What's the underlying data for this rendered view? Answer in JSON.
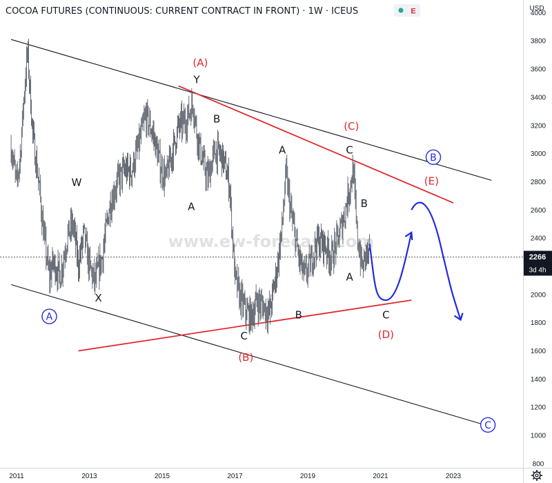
{
  "header": {
    "title": "COCOA FUTURES (CONTINUOUS: CURRENT CONTRACT IN FRONT) · 1W · ICEUS",
    "badge_letter": "E",
    "currency": "USD"
  },
  "price_tag": {
    "value": "2266",
    "countdown": "3d 4h"
  },
  "watermark": "www.ew-forecast.com",
  "chart_data": {
    "type": "line",
    "symbol": "Cocoa Futures",
    "interval": "1W",
    "xlim": [
      2010.85,
      2024.25
    ],
    "ylim": [
      770,
      4090
    ],
    "x_ticks": [
      2011,
      2013,
      2015,
      2017,
      2019,
      2021,
      2023
    ],
    "y_ticks": [
      800,
      1000,
      1200,
      1400,
      1600,
      1800,
      2000,
      2200,
      2400,
      2600,
      2800,
      3000,
      3200,
      3400,
      3600,
      3800,
      4000
    ],
    "last_price": 2266,
    "price_path": [
      [
        2010.85,
        3050
      ],
      [
        2011.0,
        2780
      ],
      [
        2011.1,
        2990
      ],
      [
        2011.2,
        3400
      ],
      [
        2011.3,
        3730
      ],
      [
        2011.45,
        3120
      ],
      [
        2011.6,
        2820
      ],
      [
        2011.75,
        2420
      ],
      [
        2011.9,
        2120
      ],
      [
        2012.0,
        2230
      ],
      [
        2012.2,
        2130
      ],
      [
        2012.4,
        2420
      ],
      [
        2012.55,
        2500
      ],
      [
        2012.7,
        2210
      ],
      [
        2012.85,
        2430
      ],
      [
        2013.0,
        2200
      ],
      [
        2013.15,
        2090
      ],
      [
        2013.35,
        2260
      ],
      [
        2013.55,
        2620
      ],
      [
        2013.75,
        2790
      ],
      [
        2013.95,
        2880
      ],
      [
        2014.15,
        2870
      ],
      [
        2014.35,
        3050
      ],
      [
        2014.55,
        3270
      ],
      [
        2014.75,
        3140
      ],
      [
        2014.95,
        2910
      ],
      [
        2015.1,
        2820
      ],
      [
        2015.25,
        2980
      ],
      [
        2015.45,
        3190
      ],
      [
        2015.65,
        3230
      ],
      [
        2015.85,
        3360
      ],
      [
        2015.95,
        3150
      ],
      [
        2016.1,
        2960
      ],
      [
        2016.25,
        2820
      ],
      [
        2016.45,
        3020
      ],
      [
        2016.65,
        2980
      ],
      [
        2016.85,
        2780
      ],
      [
        2017.0,
        2120
      ],
      [
        2017.15,
        1970
      ],
      [
        2017.3,
        1880
      ],
      [
        2017.45,
        1840
      ],
      [
        2017.6,
        1950
      ],
      [
        2017.75,
        1920
      ],
      [
        2017.95,
        1870
      ],
      [
        2018.15,
        2170
      ],
      [
        2018.3,
        2490
      ],
      [
        2018.4,
        2860
      ],
      [
        2018.55,
        2560
      ],
      [
        2018.75,
        2270
      ],
      [
        2018.9,
        2130
      ],
      [
        2019.05,
        2200
      ],
      [
        2019.25,
        2380
      ],
      [
        2019.45,
        2360
      ],
      [
        2019.65,
        2260
      ],
      [
        2019.85,
        2410
      ],
      [
        2020.0,
        2560
      ],
      [
        2020.15,
        2760
      ],
      [
        2020.25,
        2890
      ],
      [
        2020.35,
        2430
      ],
      [
        2020.5,
        2180
      ],
      [
        2020.6,
        2300
      ],
      [
        2020.7,
        2266
      ]
    ],
    "trendlines": [
      {
        "color": "#131722",
        "points": [
          [
            2010.85,
            3810
          ],
          [
            2024.05,
            2810
          ]
        ]
      },
      {
        "color": "#131722",
        "points": [
          [
            2010.85,
            2070
          ],
          [
            2024.05,
            1060
          ]
        ]
      },
      {
        "color": "#e0282e",
        "points": [
          [
            2015.45,
            3480
          ],
          [
            2023.0,
            2650
          ]
        ]
      },
      {
        "color": "#e0282e",
        "points": [
          [
            2012.7,
            1600
          ],
          [
            2021.85,
            1960
          ]
        ]
      }
    ],
    "projection": [
      [
        2020.7,
        2360
      ],
      [
        2020.85,
        2060
      ],
      [
        2021.15,
        1960
      ],
      [
        2021.45,
        2040
      ],
      [
        2021.65,
        2200
      ],
      [
        2021.85,
        2440
      ],
      [
        2021.85,
        2600
      ],
      [
        2022.05,
        2700
      ],
      [
        2022.35,
        2680
      ],
      [
        2022.65,
        2350
      ],
      [
        2022.95,
        2020
      ],
      [
        2023.2,
        1820
      ]
    ],
    "wave_labels": [
      {
        "text": "(A)",
        "color": "red",
        "x": 2016.05,
        "y": 3620
      },
      {
        "text": "Y",
        "x": 2015.95,
        "y": 3500
      },
      {
        "text": "B",
        "x": 2016.5,
        "y": 3220
      },
      {
        "text": "W",
        "x": 2012.65,
        "y": 2770
      },
      {
        "text": "A",
        "x": 2015.8,
        "y": 2600
      },
      {
        "text": "X",
        "x": 2013.25,
        "y": 1950
      },
      {
        "text": "A",
        "color": "blue",
        "circled": true,
        "x": 2011.9,
        "y": 1820
      },
      {
        "text": "A",
        "x": 2018.3,
        "y": 3000
      },
      {
        "text": "C",
        "x": 2017.25,
        "y": 1680
      },
      {
        "text": "(B)",
        "color": "red",
        "x": 2017.3,
        "y": 1530
      },
      {
        "text": "B",
        "x": 2018.75,
        "y": 1830
      },
      {
        "text": "(C)",
        "color": "red",
        "x": 2020.2,
        "y": 3170
      },
      {
        "text": "C",
        "x": 2020.15,
        "y": 3000
      },
      {
        "text": "B",
        "x": 2020.55,
        "y": 2620
      },
      {
        "text": "A",
        "x": 2020.15,
        "y": 2100
      },
      {
        "text": "C",
        "x": 2021.15,
        "y": 1830
      },
      {
        "text": "(D)",
        "color": "red",
        "x": 2021.15,
        "y": 1690
      },
      {
        "text": "(E)",
        "color": "red",
        "x": 2022.4,
        "y": 2780
      },
      {
        "text": "B",
        "color": "blue",
        "circled": true,
        "x": 2022.45,
        "y": 2950
      },
      {
        "text": "C",
        "color": "blue",
        "circled": true,
        "x": 2023.95,
        "y": 1050
      }
    ]
  }
}
